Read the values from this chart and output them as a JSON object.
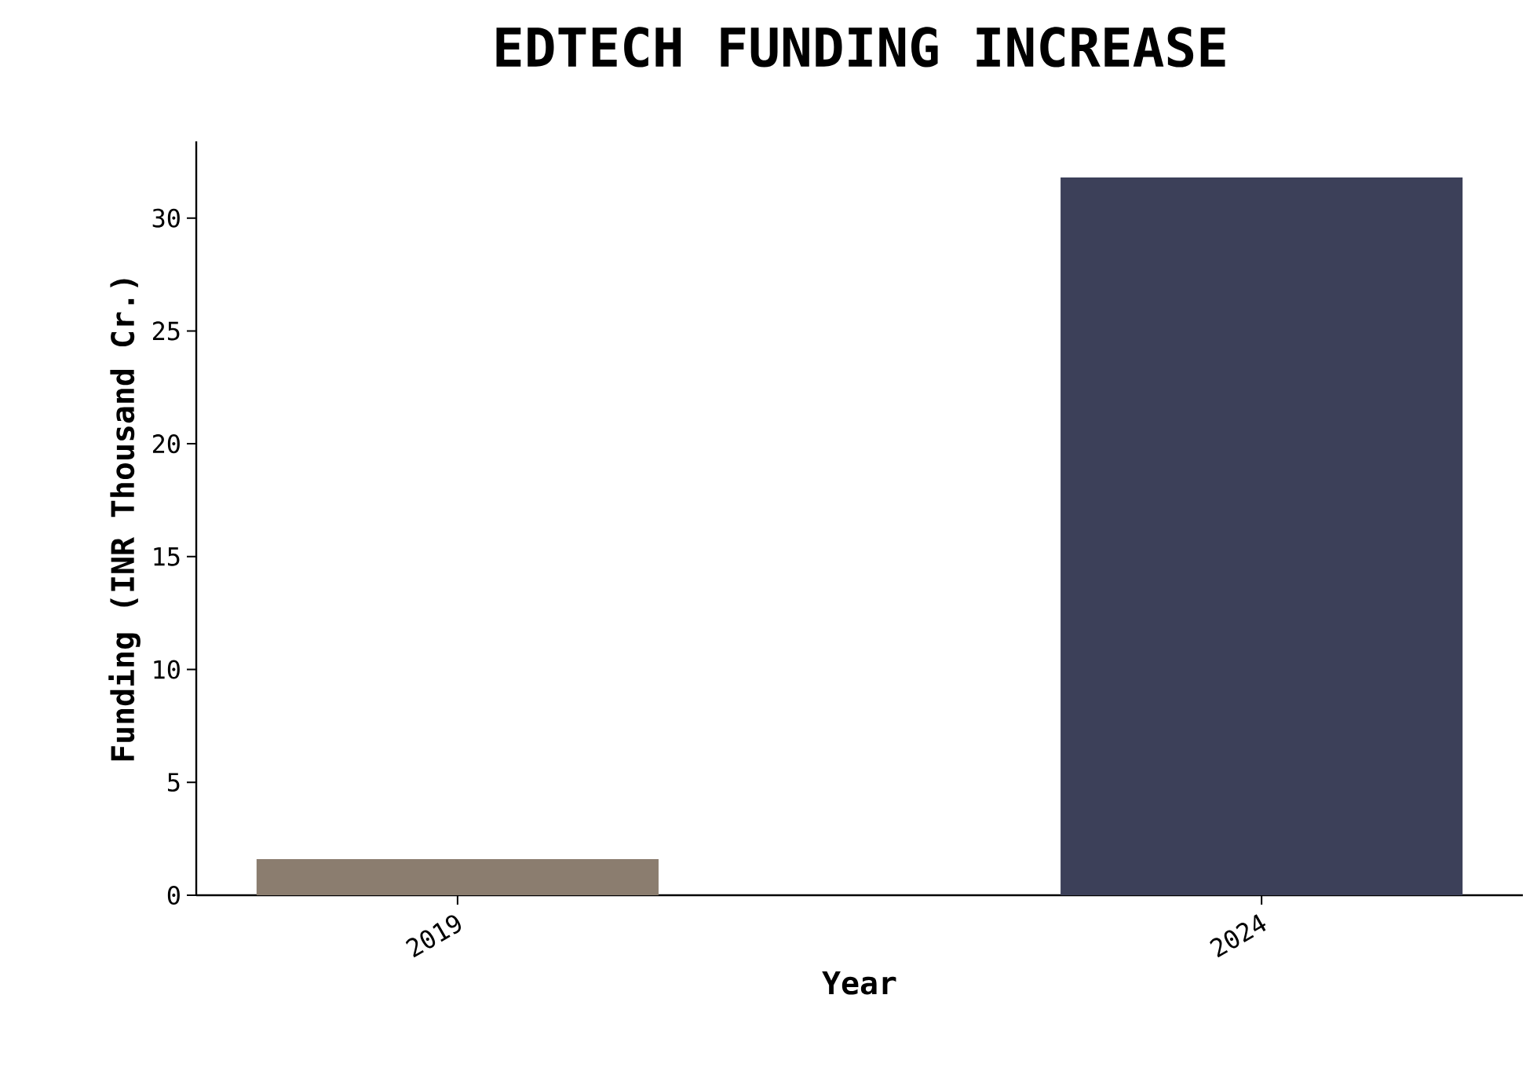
{
  "chart_data": {
    "type": "bar",
    "title": "EDTECH FUNDING INCREASE",
    "xlabel": "Year",
    "ylabel": "Funding (INR Thousand Cr.)",
    "categories": [
      "2019",
      "2024"
    ],
    "values": [
      1.6,
      31.8
    ],
    "colors": [
      "#8b7d6f",
      "#3c4059"
    ],
    "ylim": [
      0,
      33.4
    ],
    "yticks": [
      0,
      5,
      10,
      15,
      20,
      25,
      30
    ],
    "grid": false
  }
}
